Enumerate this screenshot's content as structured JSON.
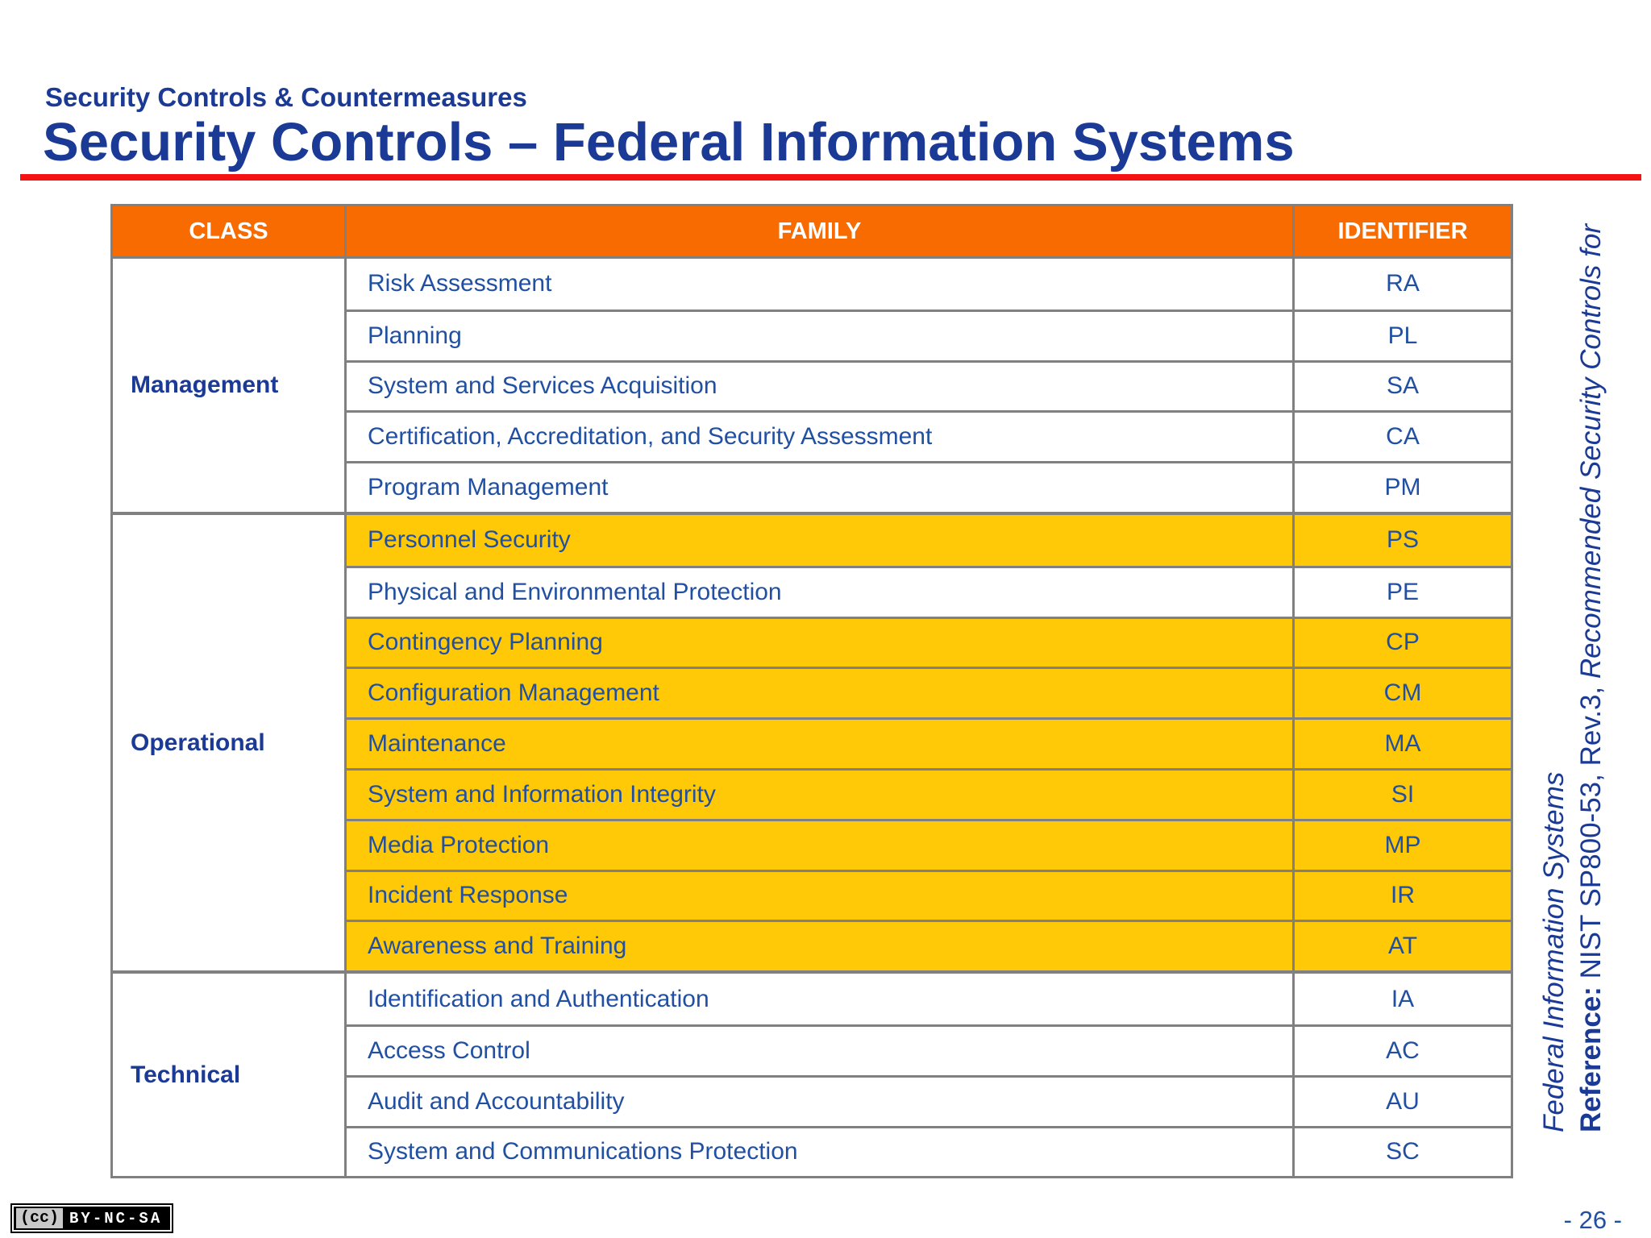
{
  "slide": {
    "eyebrow": "Security Controls & Countermeasures",
    "title": "Security Controls – Federal Information Systems",
    "page_number": "- 26 -"
  },
  "reference": {
    "label": "Reference:",
    "citation": " NIST SP800-53, Rev.3, ",
    "doc_title_line1": "Recommended Security Controls for",
    "doc_title_line2": "Federal Information Systems"
  },
  "cc_badge": {
    "logo": "(cc)",
    "license": "BY-NC-SA"
  },
  "colors": {
    "header_orange": "#f76b01",
    "highlight_yellow": "#ffc907",
    "title_blue": "#1b3a96",
    "body_blue": "#2150a2",
    "rule_red": "#f51212",
    "border_gray": "#808080"
  },
  "table": {
    "headers": [
      "CLASS",
      "FAMILY",
      "IDENTIFIER"
    ],
    "groups": [
      {
        "class": "Management",
        "rows": [
          {
            "family": "Risk Assessment",
            "identifier": "RA",
            "highlight": false
          },
          {
            "family": "Planning",
            "identifier": "PL",
            "highlight": false
          },
          {
            "family": "System and Services Acquisition",
            "identifier": "SA",
            "highlight": false
          },
          {
            "family": "Certification, Accreditation, and Security Assessment",
            "identifier": "CA",
            "highlight": false
          },
          {
            "family": "Program Management",
            "identifier": "PM",
            "highlight": false
          }
        ]
      },
      {
        "class": "Operational",
        "rows": [
          {
            "family": "Personnel Security",
            "identifier": "PS",
            "highlight": true
          },
          {
            "family": "Physical and Environmental Protection",
            "identifier": "PE",
            "highlight": false
          },
          {
            "family": "Contingency Planning",
            "identifier": "CP",
            "highlight": true
          },
          {
            "family": "Configuration Management",
            "identifier": "CM",
            "highlight": true
          },
          {
            "family": "Maintenance",
            "identifier": "MA",
            "highlight": true
          },
          {
            "family": "System and Information Integrity",
            "identifier": "SI",
            "highlight": true
          },
          {
            "family": "Media Protection",
            "identifier": "MP",
            "highlight": true
          },
          {
            "family": "Incident Response",
            "identifier": "IR",
            "highlight": true
          },
          {
            "family": "Awareness and Training",
            "identifier": "AT",
            "highlight": true
          }
        ]
      },
      {
        "class": "Technical",
        "rows": [
          {
            "family": "Identification and Authentication",
            "identifier": "IA",
            "highlight": false
          },
          {
            "family": "Access Control",
            "identifier": "AC",
            "highlight": false
          },
          {
            "family": "Audit and Accountability",
            "identifier": "AU",
            "highlight": false
          },
          {
            "family": "System and Communications Protection",
            "identifier": "SC",
            "highlight": false
          }
        ]
      }
    ]
  }
}
